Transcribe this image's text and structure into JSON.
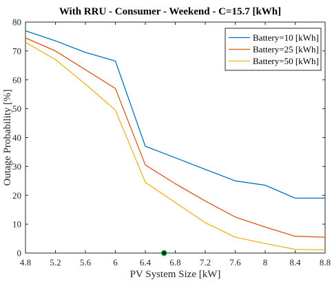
{
  "chart_data": {
    "type": "line",
    "title": "With RRU - Consumer - Weekend - C=15.7 [kWh]",
    "xlabel": "PV System Size [kW]",
    "ylabel": "Outage Probability [%]",
    "xlim": [
      4.8,
      8.8
    ],
    "ylim": [
      0,
      80
    ],
    "xticks": [
      4.8,
      5.2,
      5.6,
      6,
      6.4,
      6.8,
      7.2,
      7.6,
      8,
      8.4,
      8.8
    ],
    "yticks": [
      0,
      10,
      20,
      30,
      40,
      50,
      60,
      70,
      80
    ],
    "grid": false,
    "legend_position": "top-right",
    "x": [
      4.8,
      5.2,
      5.6,
      6.0,
      6.4,
      6.8,
      7.2,
      7.6,
      8.0,
      8.4,
      8.8
    ],
    "series": [
      {
        "name": "Battery=10 [kWh]",
        "color": "#0072BD",
        "values": [
          77,
          73.5,
          69.5,
          66.5,
          37,
          33,
          29,
          25,
          23.5,
          19,
          19
        ]
      },
      {
        "name": "Battery=25 [kWh]",
        "color": "#D95319",
        "values": [
          74.5,
          70,
          63.5,
          57,
          30.5,
          24,
          18,
          12.5,
          9,
          5.8,
          5.5
        ]
      },
      {
        "name": "Battery=50 [kWh]",
        "color": "#EDB120",
        "values": [
          73,
          67,
          58.5,
          49.5,
          24.5,
          17.5,
          10.5,
          5.5,
          3.3,
          1.3,
          1.1
        ]
      }
    ],
    "marker": {
      "x": 6.65,
      "y": 0,
      "fill": "#1a1a1a",
      "stroke": "#00b050"
    }
  }
}
